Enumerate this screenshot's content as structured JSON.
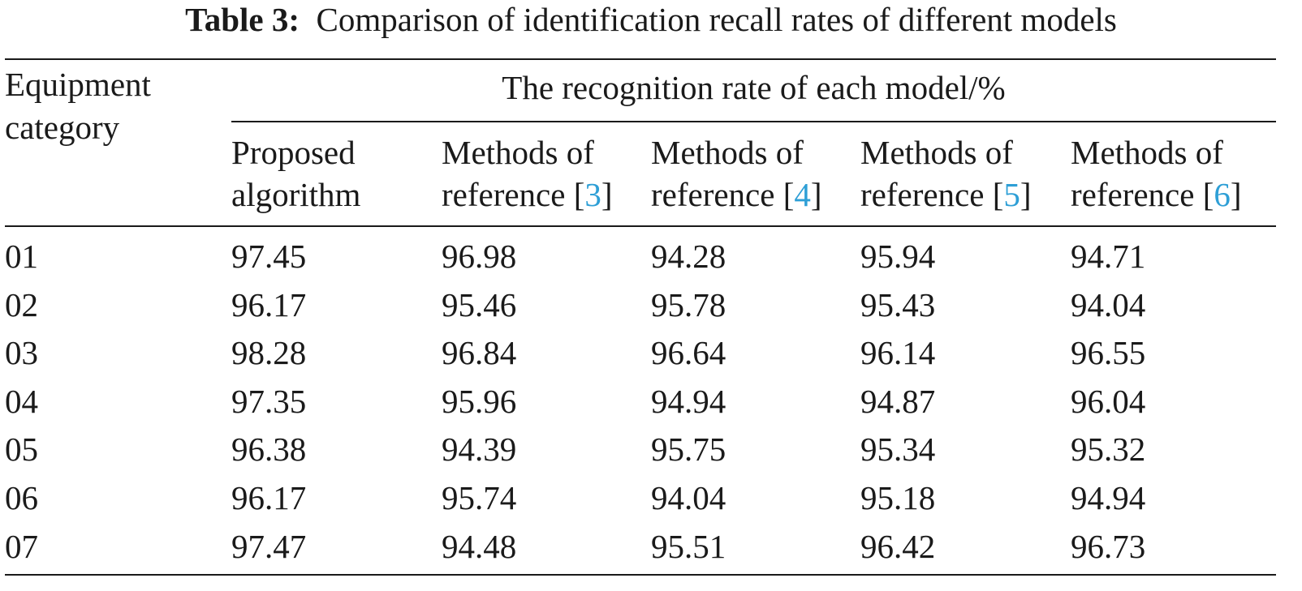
{
  "caption": {
    "label": "Table 3:",
    "text": "Comparison of identification recall rates of different models"
  },
  "table": {
    "row_header": [
      "Equipment",
      "category"
    ],
    "group_header": "The recognition rate of each model/%",
    "columns": [
      {
        "line1": "Proposed",
        "line2": "algorithm",
        "ref": ""
      },
      {
        "line1": "Methods of",
        "line2": "reference [",
        "ref": "3",
        "close": "]"
      },
      {
        "line1": "Methods of",
        "line2": "reference [",
        "ref": "4",
        "close": "]"
      },
      {
        "line1": "Methods of",
        "line2": "reference [",
        "ref": "5",
        "close": "]"
      },
      {
        "line1": "Methods of",
        "line2": "reference [",
        "ref": "6",
        "close": "]"
      }
    ],
    "rows": [
      {
        "category": "01",
        "values": [
          "97.45",
          "96.98",
          "94.28",
          "95.94",
          "94.71"
        ]
      },
      {
        "category": "02",
        "values": [
          "96.17",
          "95.46",
          "95.78",
          "95.43",
          "94.04"
        ]
      },
      {
        "category": "03",
        "values": [
          "98.28",
          "96.84",
          "96.64",
          "96.14",
          "96.55"
        ]
      },
      {
        "category": "04",
        "values": [
          "97.35",
          "95.96",
          "94.94",
          "94.87",
          "96.04"
        ]
      },
      {
        "category": "05",
        "values": [
          "96.38",
          "94.39",
          "95.75",
          "95.34",
          "95.32"
        ]
      },
      {
        "category": "06",
        "values": [
          "96.17",
          "95.74",
          "94.04",
          "95.18",
          "94.94"
        ]
      },
      {
        "category": "07",
        "values": [
          "97.47",
          "94.48",
          "95.51",
          "96.42",
          "96.73"
        ]
      }
    ]
  },
  "colors": {
    "text": "#1a1a1a",
    "reference_link": "#2e9fd6"
  }
}
